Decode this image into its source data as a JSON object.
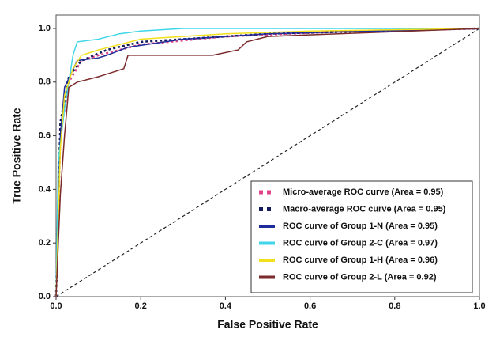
{
  "chart_data": {
    "type": "line",
    "x_label": "False Positive Rate",
    "y_label": "True Positive Rate",
    "xlim": [
      0,
      1
    ],
    "ylim": [
      0,
      1.05
    ],
    "xticks": [
      {
        "value": 0,
        "label": "0.0"
      },
      0.2,
      0.4,
      0.6,
      0.8,
      {
        "value": 1,
        "label": "1.0"
      }
    ],
    "yticks": [
      {
        "value": 0,
        "label": "0.0"
      },
      0.2,
      0.4,
      0.6,
      0.8,
      {
        "value": 1,
        "label": "1.0"
      }
    ],
    "legend_position": "lower right",
    "diagonal": {
      "x": [
        0,
        1
      ],
      "values": [
        0,
        1
      ],
      "color": "#222222",
      "style": "dashed"
    },
    "series": [
      {
        "name": "Micro-average ROC curve (Area = 0.95)",
        "color": "#e0458a",
        "style": "dotted",
        "x": [
          0,
          0.01,
          0.03,
          0.06,
          0.1,
          0.2,
          0.4,
          0.7,
          1
        ],
        "values": [
          0,
          0.6,
          0.8,
          0.88,
          0.9,
          0.94,
          0.97,
          0.99,
          1
        ]
      },
      {
        "name": "Macro-average ROC curve (Area = 0.95)",
        "color": "#141a5e",
        "style": "dotted",
        "x": [
          0,
          0.01,
          0.03,
          0.06,
          0.12,
          0.2,
          0.5,
          1
        ],
        "values": [
          0,
          0.65,
          0.82,
          0.88,
          0.92,
          0.95,
          0.98,
          1
        ]
      },
      {
        "name": "ROC curve of Group 1-N (Area = 0.95)",
        "color": "#1f2d9a",
        "style": "solid",
        "x": [
          0,
          0.01,
          0.02,
          0.05,
          0.1,
          0.12,
          0.17,
          0.3,
          0.5,
          1
        ],
        "values": [
          0,
          0.6,
          0.78,
          0.88,
          0.89,
          0.9,
          0.93,
          0.96,
          0.98,
          1
        ]
      },
      {
        "name": "ROC curve of Group 2-C (Area = 0.97)",
        "color": "#3fd6ea",
        "style": "solid",
        "x": [
          0,
          0.005,
          0.02,
          0.03,
          0.04,
          0.05,
          0.1,
          0.15,
          0.2,
          0.3,
          1
        ],
        "values": [
          0,
          0.5,
          0.7,
          0.8,
          0.9,
          0.95,
          0.96,
          0.98,
          0.99,
          1,
          1
        ]
      },
      {
        "name": "ROC curve of Group 1-H (Area = 0.96)",
        "color": "#f2e01c",
        "style": "solid",
        "x": [
          0,
          0.01,
          0.02,
          0.04,
          0.06,
          0.1,
          0.2,
          0.4,
          0.6,
          1
        ],
        "values": [
          0,
          0.55,
          0.75,
          0.85,
          0.9,
          0.92,
          0.96,
          0.98,
          0.99,
          1
        ]
      },
      {
        "name": "ROC curve of Group 2-L (Area = 0.92)",
        "color": "#7a2a2a",
        "style": "solid",
        "x": [
          0,
          0.01,
          0.02,
          0.03,
          0.05,
          0.1,
          0.16,
          0.17,
          0.37,
          0.43,
          0.45,
          0.5,
          1
        ],
        "values": [
          0,
          0.38,
          0.6,
          0.78,
          0.8,
          0.82,
          0.85,
          0.9,
          0.9,
          0.92,
          0.95,
          0.97,
          1
        ]
      }
    ]
  }
}
